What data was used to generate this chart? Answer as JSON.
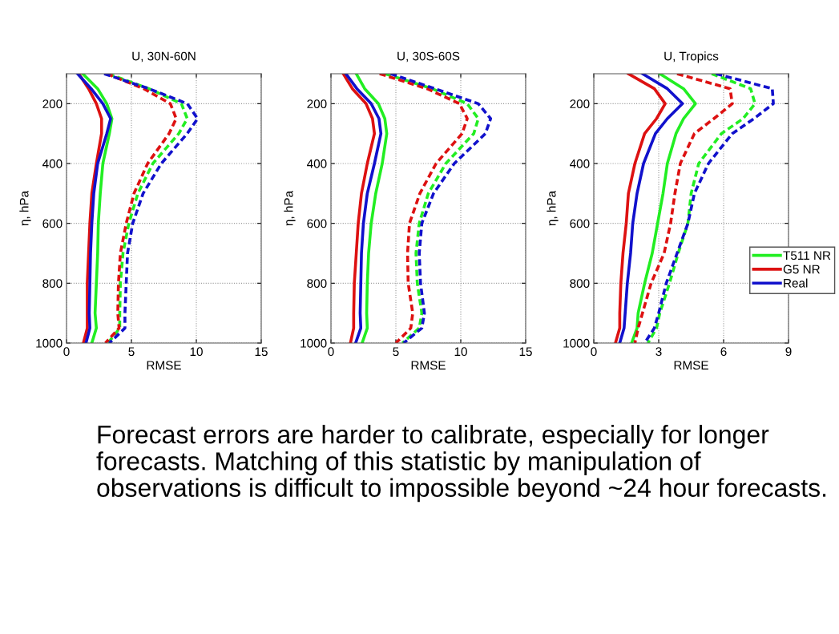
{
  "chart_data": [
    {
      "type": "line",
      "orientation": "horizontal",
      "title": "U, 30N-60N",
      "xlabel": "RMSE",
      "ylabel": "η, hPa",
      "x": [
        100,
        150,
        200,
        250,
        300,
        400,
        500,
        600,
        700,
        800,
        900,
        950,
        1000
      ],
      "series": [
        {
          "color": "#22ee22",
          "line_style": "solid",
          "values": [
            1.25,
            2.4,
            3.1,
            3.5,
            3.3,
            2.8,
            2.6,
            2.45,
            2.4,
            2.3,
            2.2,
            2.3,
            1.95
          ]
        },
        {
          "color": "#dd1111",
          "line_style": "solid",
          "values": [
            0.95,
            1.7,
            2.3,
            2.7,
            2.7,
            2.3,
            1.95,
            1.8,
            1.7,
            1.6,
            1.6,
            1.6,
            1.3
          ]
        },
        {
          "color": "#1111cc",
          "line_style": "solid",
          "values": [
            0.85,
            1.9,
            2.8,
            3.4,
            3.1,
            2.4,
            2.1,
            1.95,
            1.85,
            1.8,
            1.75,
            1.8,
            1.5
          ]
        },
        {
          "color": "#22ee22",
          "line_style": "dashed",
          "values": [
            3.2,
            6.35,
            8.85,
            9.3,
            8.65,
            6.65,
            5.5,
            4.8,
            4.35,
            4.15,
            4.1,
            4.1,
            3.2
          ]
        },
        {
          "color": "#dd1111",
          "line_style": "dashed",
          "values": [
            3.1,
            5.95,
            8.0,
            8.45,
            7.9,
            6.25,
            5.2,
            4.6,
            4.15,
            4.0,
            3.95,
            4.05,
            3.0
          ]
        },
        {
          "color": "#1111cc",
          "line_style": "dashed",
          "values": [
            2.9,
            6.35,
            9.3,
            10.1,
            9.3,
            7.3,
            5.9,
            5.1,
            4.7,
            4.6,
            4.5,
            4.5,
            3.3
          ]
        }
      ],
      "xlim": [
        0,
        15
      ],
      "xticks": [
        0,
        5,
        10,
        15
      ],
      "ylim": [
        1000,
        100
      ],
      "yticks": [
        200,
        400,
        600,
        800,
        1000
      ],
      "grid": true,
      "annotations": [
        "Forecast errors are harder to calibrate, especially for longer forecasts. Matching of this statistic by manipulation of observations is difficult to impossible beyond ~24 hour forecasts."
      ]
    },
    {
      "type": "line",
      "orientation": "horizontal",
      "title": "U, 30S-60S",
      "xlabel": "RMSE",
      "ylabel": "η, hPa",
      "x": [
        100,
        150,
        200,
        250,
        300,
        400,
        500,
        600,
        700,
        800,
        900,
        950,
        1000
      ],
      "series": [
        {
          "color": "#22ee22",
          "line_style": "solid",
          "values": [
            1.95,
            2.6,
            3.65,
            4.15,
            4.3,
            3.95,
            3.45,
            3.1,
            2.9,
            2.8,
            2.75,
            2.8,
            2.4
          ]
        },
        {
          "color": "#dd1111",
          "line_style": "solid",
          "values": [
            0.95,
            1.65,
            2.7,
            3.2,
            3.35,
            2.8,
            2.35,
            2.1,
            1.95,
            1.8,
            1.75,
            1.75,
            1.5
          ]
        },
        {
          "color": "#1111cc",
          "line_style": "solid",
          "values": [
            1.15,
            2.0,
            3.1,
            3.7,
            3.85,
            3.35,
            2.8,
            2.5,
            2.35,
            2.3,
            2.25,
            2.3,
            1.9
          ]
        },
        {
          "color": "#22ee22",
          "line_style": "dashed",
          "values": [
            4.15,
            7.8,
            10.5,
            11.35,
            11.0,
            8.85,
            7.5,
            6.8,
            6.55,
            6.65,
            7.0,
            6.8,
            5.5
          ]
        },
        {
          "color": "#dd1111",
          "line_style": "dashed",
          "values": [
            3.75,
            7.4,
            9.9,
            10.5,
            10.1,
            8.1,
            6.85,
            6.05,
            5.9,
            5.95,
            6.3,
            6.15,
            5.0
          ]
        },
        {
          "color": "#1111cc",
          "line_style": "dashed",
          "values": [
            4.6,
            8.0,
            11.35,
            12.3,
            11.9,
            9.5,
            7.9,
            7.0,
            6.8,
            6.9,
            7.2,
            7.0,
            5.6
          ]
        }
      ],
      "xlim": [
        0,
        15
      ],
      "xticks": [
        0,
        5,
        10,
        15
      ],
      "ylim": [
        1000,
        100
      ],
      "yticks": [
        200,
        400,
        600,
        800,
        1000
      ],
      "grid": true
    },
    {
      "type": "line",
      "orientation": "horizontal",
      "title": "U, Tropics",
      "xlabel": "RMSE",
      "ylabel": "η, hPa",
      "x": [
        100,
        150,
        200,
        250,
        300,
        400,
        500,
        600,
        700,
        800,
        900,
        950,
        1000
      ],
      "series": [
        {
          "name": "T511 NR",
          "color": "#22ee22",
          "line_style": "solid",
          "values": [
            3.05,
            4.15,
            4.7,
            4.15,
            3.8,
            3.4,
            3.2,
            2.95,
            2.7,
            2.35,
            2.05,
            2.0,
            1.75
          ]
        },
        {
          "name": "G5 NR",
          "color": "#dd1111",
          "line_style": "solid",
          "values": [
            1.6,
            2.8,
            3.3,
            2.9,
            2.35,
            1.9,
            1.6,
            1.5,
            1.35,
            1.25,
            1.2,
            1.2,
            1.0
          ]
        },
        {
          "name": "Real",
          "color": "#1111cc",
          "line_style": "solid",
          "values": [
            2.25,
            3.4,
            4.1,
            3.4,
            2.85,
            2.3,
            2.0,
            1.8,
            1.7,
            1.55,
            1.45,
            1.4,
            1.2
          ]
        },
        {
          "color": "#22ee22",
          "line_style": "dashed",
          "values": [
            5.45,
            7.25,
            7.45,
            6.9,
            5.9,
            4.85,
            4.5,
            4.35,
            3.9,
            3.5,
            3.05,
            2.9,
            2.5
          ]
        },
        {
          "color": "#dd1111",
          "line_style": "dashed",
          "values": [
            3.85,
            6.3,
            6.4,
            5.55,
            4.65,
            4.0,
            3.75,
            3.55,
            3.25,
            2.65,
            2.25,
            2.05,
            1.9
          ]
        },
        {
          "color": "#1111cc",
          "line_style": "dashed",
          "values": [
            5.65,
            8.25,
            8.3,
            7.4,
            6.4,
            5.3,
            4.65,
            4.35,
            3.85,
            3.35,
            3.0,
            2.8,
            2.35
          ]
        }
      ],
      "xlim": [
        0,
        9
      ],
      "xticks": [
        0,
        3,
        6,
        9
      ],
      "ylim": [
        1000,
        100
      ],
      "yticks": [
        200,
        400,
        600,
        800,
        1000
      ],
      "grid": true,
      "legend": "right"
    }
  ]
}
